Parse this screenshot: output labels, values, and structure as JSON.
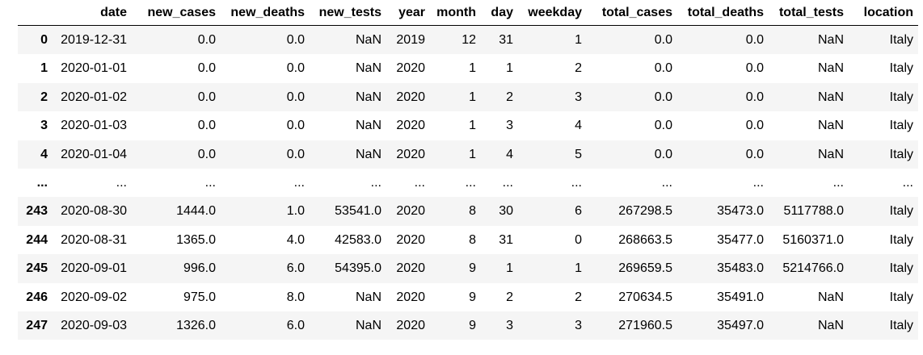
{
  "table": {
    "columns": [
      "",
      "date",
      "new_cases",
      "new_deaths",
      "new_tests",
      "year",
      "month",
      "day",
      "weekday",
      "total_cases",
      "total_deaths",
      "total_tests",
      "location"
    ],
    "rows": [
      [
        "0",
        "2019-12-31",
        "0.0",
        "0.0",
        "NaN",
        "2019",
        "12",
        "31",
        "1",
        "0.0",
        "0.0",
        "NaN",
        "Italy"
      ],
      [
        "1",
        "2020-01-01",
        "0.0",
        "0.0",
        "NaN",
        "2020",
        "1",
        "1",
        "2",
        "0.0",
        "0.0",
        "NaN",
        "Italy"
      ],
      [
        "2",
        "2020-01-02",
        "0.0",
        "0.0",
        "NaN",
        "2020",
        "1",
        "2",
        "3",
        "0.0",
        "0.0",
        "NaN",
        "Italy"
      ],
      [
        "3",
        "2020-01-03",
        "0.0",
        "0.0",
        "NaN",
        "2020",
        "1",
        "3",
        "4",
        "0.0",
        "0.0",
        "NaN",
        "Italy"
      ],
      [
        "4",
        "2020-01-04",
        "0.0",
        "0.0",
        "NaN",
        "2020",
        "1",
        "4",
        "5",
        "0.0",
        "0.0",
        "NaN",
        "Italy"
      ],
      [
        "...",
        "...",
        "...",
        "...",
        "...",
        "...",
        "...",
        "...",
        "...",
        "...",
        "...",
        "...",
        "..."
      ],
      [
        "243",
        "2020-08-30",
        "1444.0",
        "1.0",
        "53541.0",
        "2020",
        "8",
        "30",
        "6",
        "267298.5",
        "35473.0",
        "5117788.0",
        "Italy"
      ],
      [
        "244",
        "2020-08-31",
        "1365.0",
        "4.0",
        "42583.0",
        "2020",
        "8",
        "31",
        "0",
        "268663.5",
        "35477.0",
        "5160371.0",
        "Italy"
      ],
      [
        "245",
        "2020-09-01",
        "996.0",
        "6.0",
        "54395.0",
        "2020",
        "9",
        "1",
        "1",
        "269659.5",
        "35483.0",
        "5214766.0",
        "Italy"
      ],
      [
        "246",
        "2020-09-02",
        "975.0",
        "8.0",
        "NaN",
        "2020",
        "9",
        "2",
        "2",
        "270634.5",
        "35491.0",
        "NaN",
        "Italy"
      ],
      [
        "247",
        "2020-09-03",
        "1326.0",
        "6.0",
        "NaN",
        "2020",
        "9",
        "3",
        "3",
        "271960.5",
        "35497.0",
        "NaN",
        "Italy"
      ]
    ]
  }
}
